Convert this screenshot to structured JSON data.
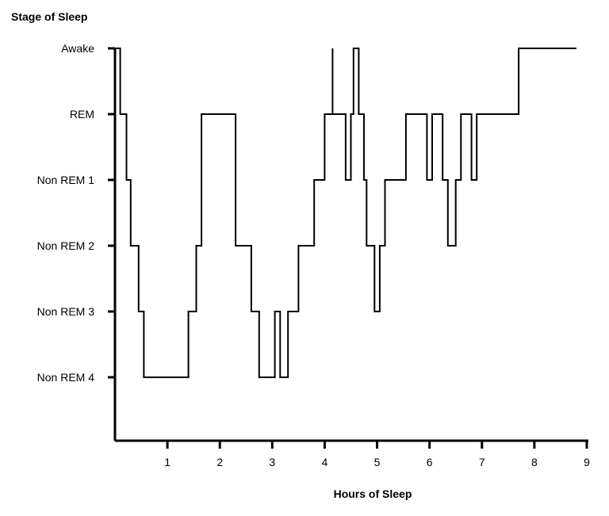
{
  "chart_data": {
    "type": "line",
    "ylabel": "Stage of Sleep",
    "xlabel": "Hours of Sleep",
    "x_ticks": [
      "1",
      "2",
      "3",
      "4",
      "5",
      "6",
      "7",
      "8",
      "9"
    ],
    "xlim": [
      0,
      9
    ],
    "y_categories": [
      "Non REM 4",
      "Non REM 3",
      "Non REM 2",
      "Non REM 1",
      "REM",
      "Awake"
    ],
    "grid": false,
    "series": [
      {
        "values": [
          [
            0.0,
            5
          ],
          [
            0.1,
            5
          ],
          [
            0.1,
            4
          ],
          [
            0.22,
            4
          ],
          [
            0.22,
            3
          ],
          [
            0.3,
            3
          ],
          [
            0.3,
            2
          ],
          [
            0.45,
            2
          ],
          [
            0.45,
            1
          ],
          [
            0.55,
            1
          ],
          [
            0.55,
            0
          ],
          [
            1.4,
            0
          ],
          [
            1.4,
            1
          ],
          [
            1.55,
            1
          ],
          [
            1.55,
            2
          ],
          [
            1.65,
            2
          ],
          [
            1.65,
            4
          ],
          [
            2.3,
            4
          ],
          [
            2.3,
            2
          ],
          [
            2.6,
            2
          ],
          [
            2.6,
            1
          ],
          [
            2.75,
            1
          ],
          [
            2.75,
            0
          ],
          [
            3.05,
            0
          ],
          [
            3.05,
            1
          ],
          [
            3.15,
            1
          ],
          [
            3.15,
            0
          ],
          [
            3.3,
            0
          ],
          [
            3.3,
            1
          ],
          [
            3.5,
            1
          ],
          [
            3.5,
            2
          ],
          [
            3.8,
            2
          ],
          [
            3.8,
            3
          ],
          [
            4.0,
            3
          ],
          [
            4.0,
            4
          ],
          [
            4.15,
            4
          ],
          [
            4.15,
            5
          ],
          [
            4.15,
            4
          ],
          [
            4.4,
            4
          ],
          [
            4.4,
            3
          ],
          [
            4.5,
            3
          ],
          [
            4.5,
            4
          ],
          [
            4.55,
            4
          ],
          [
            4.55,
            5
          ],
          [
            4.65,
            5
          ],
          [
            4.65,
            4
          ],
          [
            4.75,
            4
          ],
          [
            4.75,
            3
          ],
          [
            4.8,
            3
          ],
          [
            4.8,
            2
          ],
          [
            4.95,
            2
          ],
          [
            4.95,
            1
          ],
          [
            5.05,
            1
          ],
          [
            5.05,
            2
          ],
          [
            5.15,
            2
          ],
          [
            5.15,
            3
          ],
          [
            5.55,
            3
          ],
          [
            5.55,
            4
          ],
          [
            5.95,
            4
          ],
          [
            5.95,
            3
          ],
          [
            6.05,
            3
          ],
          [
            6.05,
            4
          ],
          [
            6.25,
            4
          ],
          [
            6.25,
            3
          ],
          [
            6.35,
            3
          ],
          [
            6.35,
            2
          ],
          [
            6.5,
            2
          ],
          [
            6.5,
            3
          ],
          [
            6.6,
            3
          ],
          [
            6.6,
            4
          ],
          [
            6.8,
            4
          ],
          [
            6.8,
            3
          ],
          [
            6.9,
            3
          ],
          [
            6.9,
            4
          ],
          [
            7.7,
            4
          ],
          [
            7.7,
            5
          ],
          [
            8.8,
            5
          ]
        ]
      }
    ]
  }
}
